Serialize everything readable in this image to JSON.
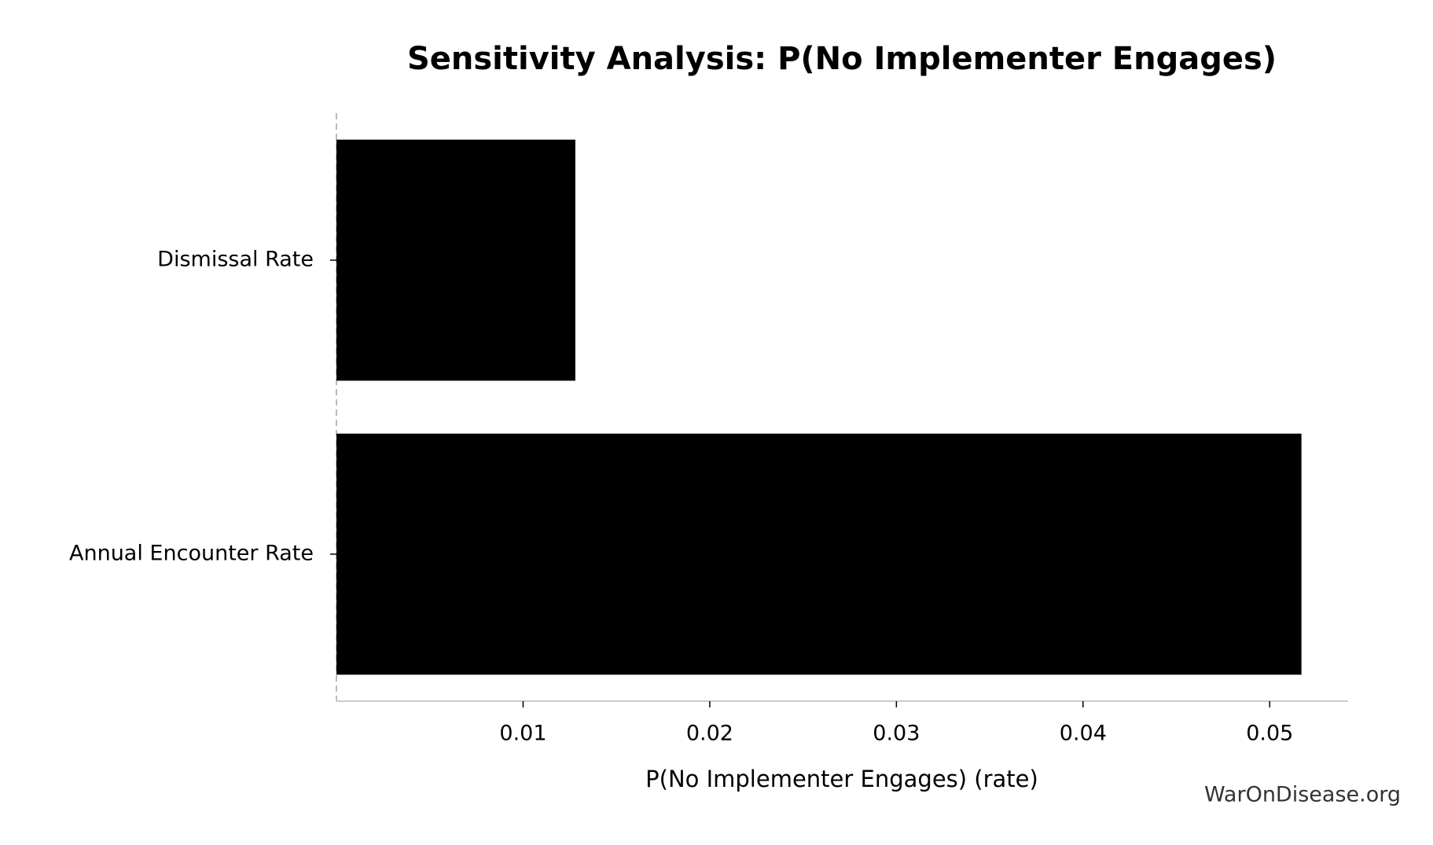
{
  "chart_data": {
    "type": "hbar",
    "title": "Sensitivity Analysis: P(No Implementer Engages)",
    "categories": [
      "Dismissal Rate",
      "Annual Encounter Rate"
    ],
    "values": [
      0.0128,
      0.0517
    ],
    "color": "#000000",
    "x_label": "P(No Implementer Engages) (rate)",
    "xlim": [
      0,
      0.0542
    ],
    "xticks": [
      0.01,
      0.02,
      0.03,
      0.04,
      0.05
    ],
    "watermark": "WarOnDisease.org"
  }
}
